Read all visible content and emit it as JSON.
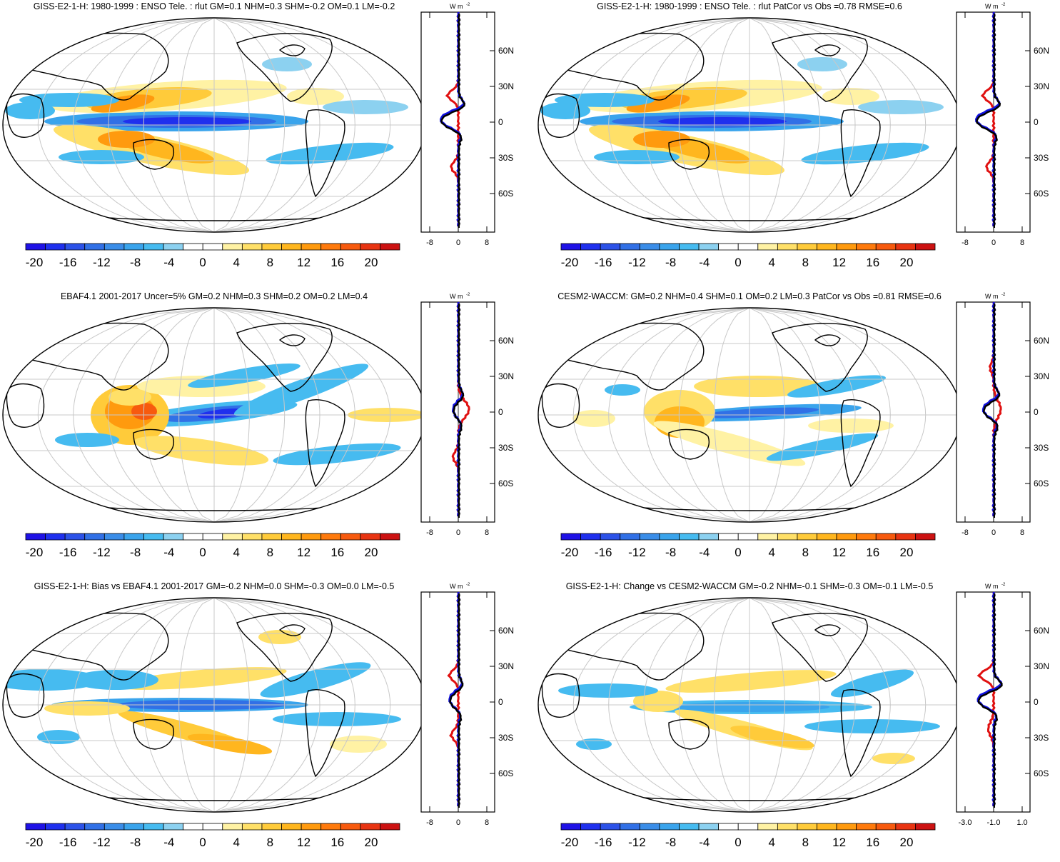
{
  "colorbar": {
    "colors": [
      "#1f12e6",
      "#1f30ee",
      "#2c52e8",
      "#3170e6",
      "#3a8de8",
      "#3aa4ec",
      "#46bbf0",
      "#8cd1f0",
      "#ffffff",
      "#ffffff",
      "#fff2a4",
      "#ffe068",
      "#ffcb3a",
      "#ffb61e",
      "#ff9a0e",
      "#ff7a0c",
      "#f75a0e",
      "#e83412",
      "#cc1212"
    ],
    "labels": [
      "-20",
      "-16",
      "-12",
      "-8",
      "-4",
      "0",
      "4",
      "8",
      "12",
      "16",
      "20"
    ]
  },
  "zonal_axis": {
    "unit_label": "W m",
    "unit_exp": "-2",
    "lat_labels": [
      "60N",
      "30N",
      "0",
      "30S",
      "60S"
    ]
  },
  "panels": [
    {
      "id": "model",
      "title": "GISS-E2-1-H: 1980-1999 : ENSO Tele. : rlut GM=0.1 NHM=0.3 SHM=-0.2 OM=0.1 LM=-0.2",
      "x_ticks": [
        "-8",
        "0",
        "8"
      ],
      "pattern": "model"
    },
    {
      "id": "model-vs-obs",
      "title": "GISS-E2-1-H: 1980-1999 : ENSO Tele. : rlut PatCor vs Obs =0.78 RMSE=0.6",
      "x_ticks": [
        "-8",
        "0",
        "8"
      ],
      "pattern": "model"
    },
    {
      "id": "obs",
      "title": "EBAF4.1 2001-2017 Uncer=5% GM=0.2 NHM=0.3 SHM=0.2 OM=0.2 LM=0.4",
      "x_ticks": [
        "-8",
        "0",
        "8"
      ],
      "pattern": "obs"
    },
    {
      "id": "cesm",
      "title": "CESM2-WACCM: GM=0.2 NHM=0.4 SHM=0.1 OM=0.2 LM=0.3 PatCor vs Obs =0.81 RMSE=0.6",
      "x_ticks": [
        "-8",
        "0",
        "8"
      ],
      "pattern": "cesm"
    },
    {
      "id": "bias",
      "title": "GISS-E2-1-H: Bias vs EBAF4.1 2001-2017 GM=-0.2 NHM=0.0 SHM=-0.3 OM=0.0 LM=-0.5",
      "x_ticks": [
        "-8",
        "0",
        "8"
      ],
      "pattern": "bias"
    },
    {
      "id": "change",
      "title": "GISS-E2-1-H: Change vs CESM2-WACCM GM=-0.2 NHM=-0.1 SHM=-0.3 OM=-0.1 LM=-0.5",
      "x_ticks": [
        "-3.0",
        "-1.0",
        "1.0"
      ],
      "pattern": "change"
    }
  ]
}
